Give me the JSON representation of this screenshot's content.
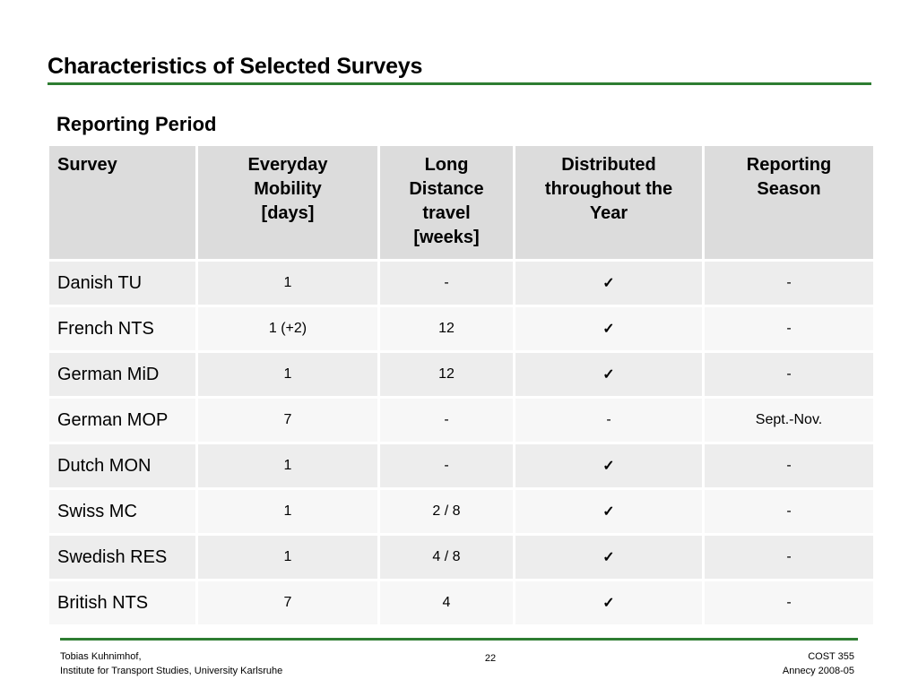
{
  "title": "Characteristics of Selected Surveys",
  "subtitle": "Reporting Period",
  "table": {
    "headers": {
      "survey": "Survey",
      "everyday": [
        "Everyday",
        "Mobility",
        "[days]"
      ],
      "long": [
        "Long",
        "Distance",
        "travel",
        "[weeks]"
      ],
      "distributed": [
        "Distributed",
        "throughout the",
        "Year"
      ],
      "season": [
        "Reporting",
        "Season"
      ]
    },
    "rows": [
      {
        "survey": "Danish TU",
        "everyday": "1",
        "long": "-",
        "distributed": "✓",
        "season": "-"
      },
      {
        "survey": "French NTS",
        "everyday": "1 (+2)",
        "long": "12",
        "distributed": "✓",
        "season": "-"
      },
      {
        "survey": "German MiD",
        "everyday": "1",
        "long": "12",
        "distributed": "✓",
        "season": "-"
      },
      {
        "survey": "German MOP",
        "everyday": "7",
        "long": "-",
        "distributed": "-",
        "season": "Sept.-Nov."
      },
      {
        "survey": "Dutch MON",
        "everyday": "1",
        "long": "-",
        "distributed": "✓",
        "season": "-"
      },
      {
        "survey": "Swiss MC",
        "everyday": "1",
        "long": "2 / 8",
        "distributed": "✓",
        "season": "-"
      },
      {
        "survey": "Swedish RES",
        "everyday": "1",
        "long": "4 / 8",
        "distributed": "✓",
        "season": "-"
      },
      {
        "survey": "British NTS",
        "everyday": "7",
        "long": "4",
        "distributed": "✓",
        "season": "-"
      }
    ]
  },
  "footer": {
    "author": "Tobias Kuhnimhof,",
    "institute": "Institute for Transport Studies, University Karlsruhe",
    "page": "22",
    "event": "COST 355",
    "location_date": "Annecy 2008-05"
  },
  "colors": {
    "accent_rule": "#2e7d32",
    "header_bg": "#dcdcdc",
    "row_odd": "#ededed",
    "row_even": "#f7f7f7"
  }
}
